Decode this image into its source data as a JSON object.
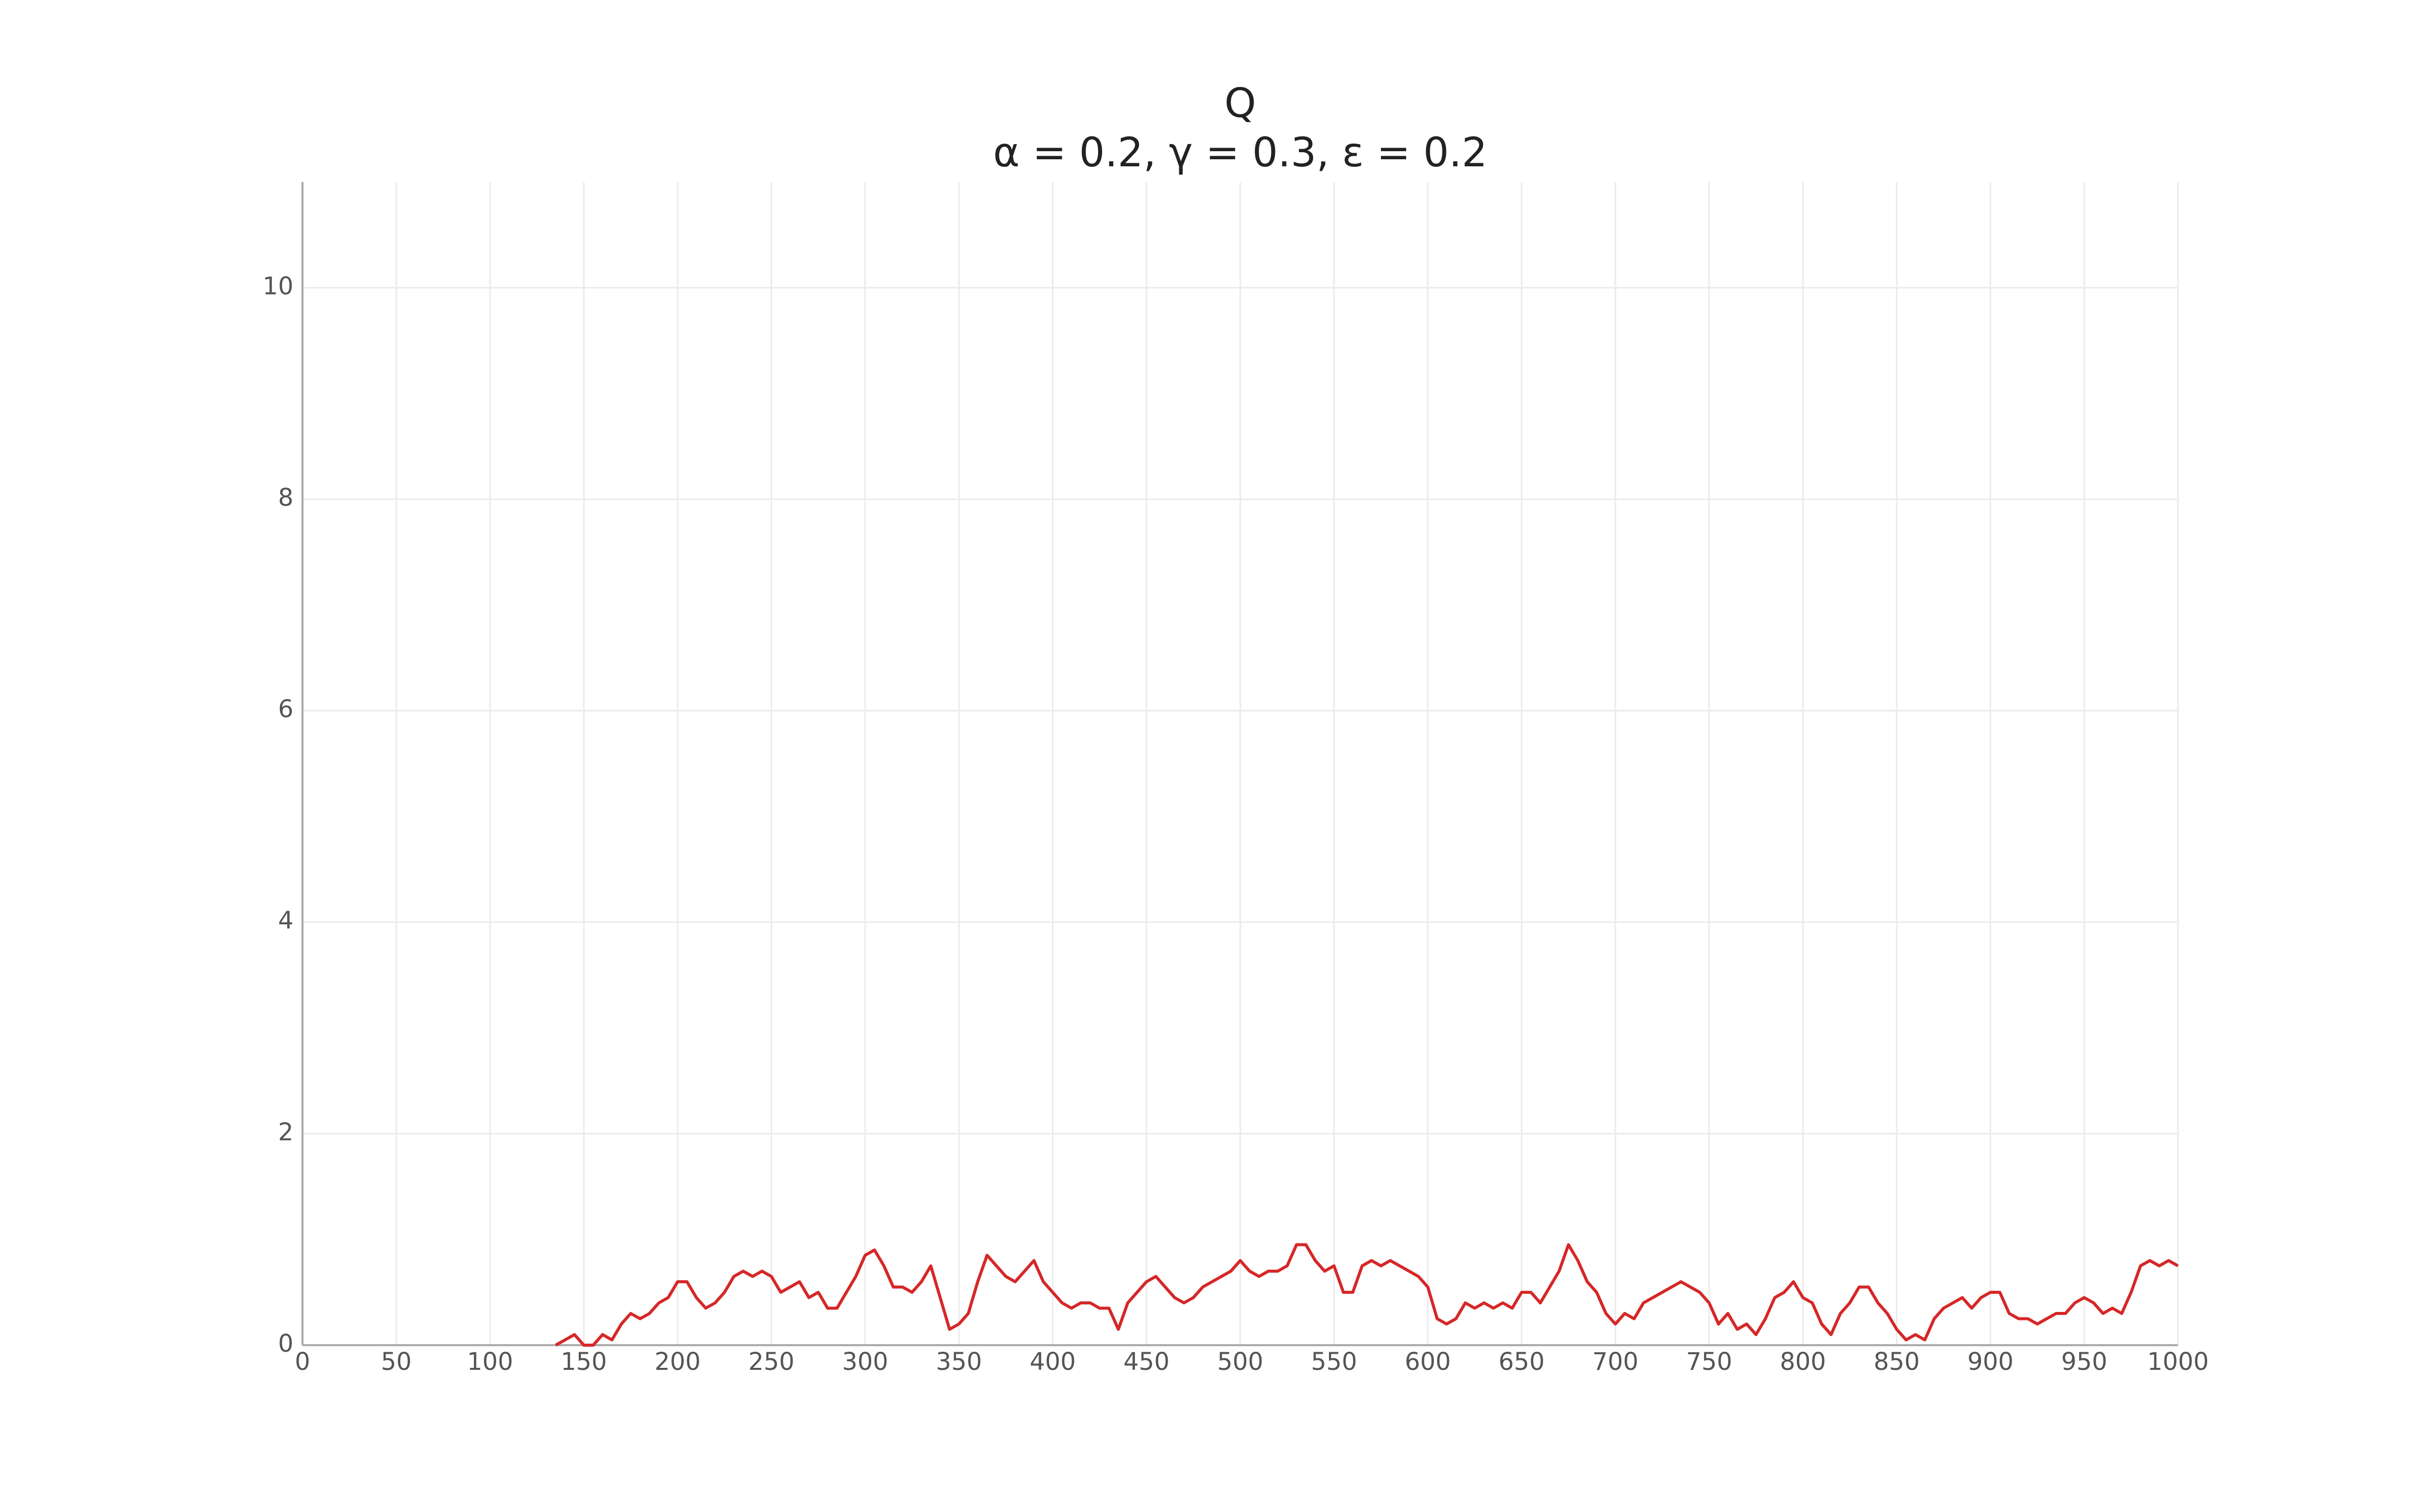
{
  "chart_data": {
    "type": "line",
    "title": "Q",
    "subtitle": "α = 0.2, γ = 0.3, ε = 0.2",
    "color": "#d62728",
    "grid": true,
    "xlim": [
      0,
      1000
    ],
    "ylim": [
      0,
      11
    ],
    "xticks": [
      0,
      50,
      100,
      150,
      200,
      250,
      300,
      350,
      400,
      450,
      500,
      550,
      600,
      650,
      700,
      750,
      800,
      850,
      900,
      950,
      1000
    ],
    "yticks": [
      0,
      2,
      4,
      6,
      8,
      10
    ],
    "x": [
      135,
      140,
      145,
      150,
      155,
      160,
      165,
      170,
      175,
      180,
      185,
      190,
      195,
      200,
      205,
      210,
      215,
      220,
      225,
      230,
      235,
      240,
      245,
      250,
      255,
      260,
      265,
      270,
      275,
      280,
      285,
      290,
      295,
      300,
      305,
      310,
      315,
      320,
      325,
      330,
      335,
      340,
      345,
      350,
      355,
      360,
      365,
      370,
      375,
      380,
      385,
      390,
      395,
      400,
      405,
      410,
      415,
      420,
      425,
      430,
      435,
      440,
      445,
      450,
      455,
      460,
      465,
      470,
      475,
      480,
      485,
      490,
      495,
      500,
      505,
      510,
      515,
      520,
      525,
      530,
      535,
      540,
      545,
      550,
      555,
      560,
      565,
      570,
      575,
      580,
      585,
      590,
      595,
      600,
      605,
      610,
      615,
      620,
      625,
      630,
      635,
      640,
      645,
      650,
      655,
      660,
      665,
      670,
      675,
      680,
      685,
      690,
      695,
      700,
      705,
      710,
      715,
      720,
      725,
      730,
      735,
      740,
      745,
      750,
      755,
      760,
      765,
      770,
      775,
      780,
      785,
      790,
      795,
      800,
      805,
      810,
      815,
      820,
      825,
      830,
      835,
      840,
      845,
      850,
      855,
      860,
      865,
      870,
      875,
      880,
      885,
      890,
      895,
      900,
      905,
      910,
      915,
      920,
      925,
      930,
      935,
      940,
      945,
      950,
      955,
      960,
      965,
      970,
      975,
      980,
      985,
      990,
      995,
      1000
    ],
    "values": [
      0,
      0.05,
      0.1,
      0,
      0,
      0.1,
      0.05,
      0.2,
      0.3,
      0.25,
      0.3,
      0.4,
      0.45,
      0.6,
      0.6,
      0.45,
      0.35,
      0.4,
      0.5,
      0.65,
      0.7,
      0.65,
      0.7,
      0.65,
      0.5,
      0.55,
      0.6,
      0.45,
      0.5,
      0.35,
      0.35,
      0.5,
      0.65,
      0.85,
      0.9,
      0.75,
      0.55,
      0.55,
      0.5,
      0.6,
      0.75,
      0.45,
      0.15,
      0.2,
      0.3,
      0.6,
      0.85,
      0.75,
      0.65,
      0.6,
      0.7,
      0.8,
      0.6,
      0.5,
      0.4,
      0.35,
      0.4,
      0.4,
      0.35,
      0.35,
      0.15,
      0.4,
      0.5,
      0.6,
      0.65,
      0.55,
      0.45,
      0.4,
      0.45,
      0.55,
      0.6,
      0.65,
      0.7,
      0.8,
      0.7,
      0.65,
      0.7,
      0.7,
      0.75,
      0.95,
      0.95,
      0.8,
      0.7,
      0.75,
      0.5,
      0.5,
      0.75,
      0.8,
      0.75,
      0.8,
      0.75,
      0.7,
      0.65,
      0.55,
      0.25,
      0.2,
      0.25,
      0.4,
      0.35,
      0.4,
      0.35,
      0.4,
      0.35,
      0.5,
      0.5,
      0.4,
      0.55,
      0.7,
      0.95,
      0.8,
      0.6,
      0.5,
      0.3,
      0.2,
      0.3,
      0.25,
      0.4,
      0.45,
      0.5,
      0.55,
      0.6,
      0.55,
      0.5,
      0.4,
      0.2,
      0.3,
      0.15,
      0.2,
      0.1,
      0.25,
      0.45,
      0.5,
      0.6,
      0.45,
      0.4,
      0.2,
      0.1,
      0.3,
      0.4,
      0.55,
      0.55,
      0.4,
      0.3,
      0.15,
      0.05,
      0.1,
      0.05,
      0.25,
      0.35,
      0.4,
      0.45,
      0.35,
      0.45,
      0.5,
      0.5,
      0.3,
      0.25,
      0.25,
      0.2,
      0.25,
      0.3,
      0.3,
      0.4,
      0.45,
      0.4,
      0.3,
      0.35,
      0.3,
      0.5,
      0.75,
      0.8,
      0.75,
      0.8,
      0.75
    ]
  }
}
